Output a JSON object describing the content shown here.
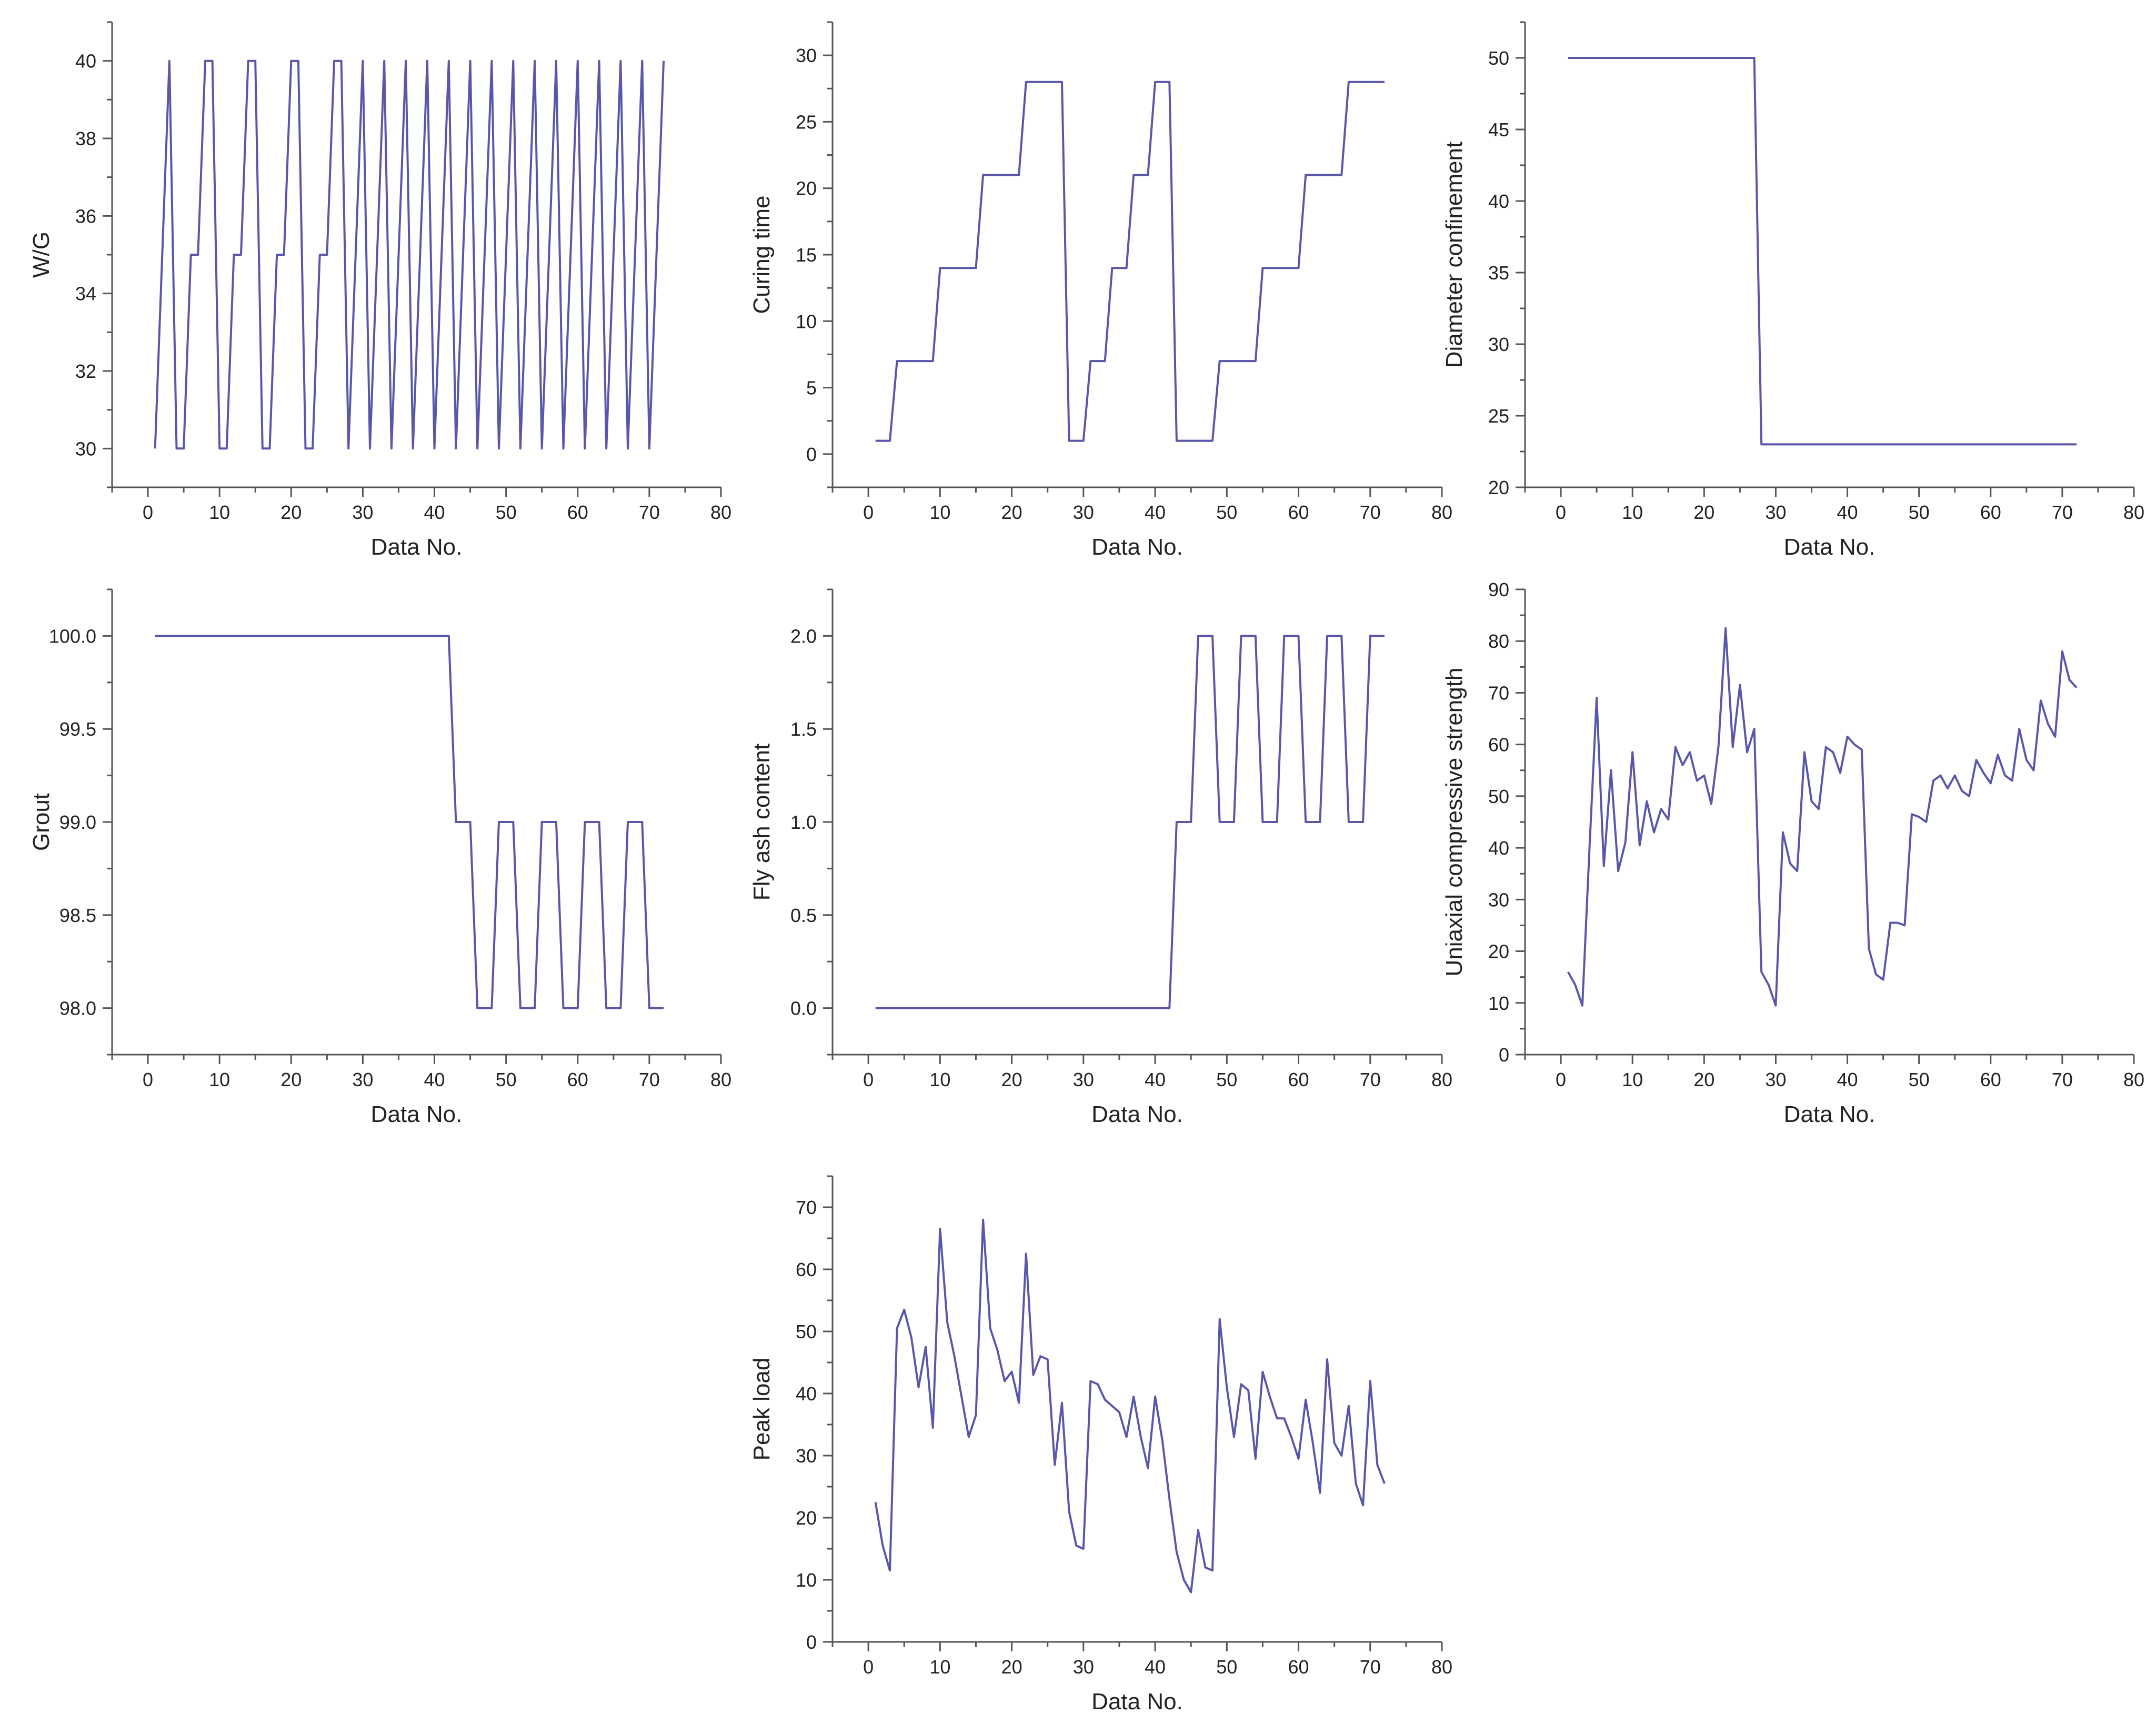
{
  "style": {
    "line_color": "#5a56aa",
    "axis_color": "#555555",
    "text_color": "#222222"
  },
  "chart_data": [
    {
      "type": "line",
      "title": "",
      "xlabel": "Data No.",
      "ylabel": "W/G",
      "xlim": [
        -5,
        80
      ],
      "ylim": [
        29,
        41
      ],
      "xticks": [
        0,
        10,
        20,
        30,
        40,
        50,
        60,
        70,
        80
      ],
      "yticks": [
        30,
        32,
        34,
        36,
        38,
        40
      ],
      "ytick_labels": [
        "30",
        "32",
        "34",
        "36",
        "38",
        "40"
      ],
      "grid": false,
      "x": [
        1,
        2,
        3,
        4,
        5,
        6,
        7,
        8,
        9,
        10,
        11,
        12,
        13,
        14,
        15,
        16,
        17,
        18,
        19,
        20,
        21,
        22,
        23,
        24,
        25,
        26,
        27,
        28,
        29,
        30,
        31,
        32,
        33,
        34,
        35,
        36,
        37,
        38,
        39,
        40,
        41,
        42,
        43,
        44,
        45,
        46,
        47,
        48,
        49,
        50,
        51,
        52,
        53,
        54,
        55,
        56,
        57,
        58,
        59,
        60,
        61,
        62,
        63,
        64,
        65,
        66,
        67,
        68,
        69,
        70,
        71,
        72
      ],
      "y": [
        30,
        35,
        40,
        30,
        30,
        35,
        35,
        40,
        40,
        30,
        30,
        35,
        35,
        40,
        40,
        30,
        30,
        35,
        35,
        40,
        40,
        30,
        30,
        35,
        35,
        40,
        40,
        30,
        35,
        40,
        30,
        35,
        40,
        30,
        35,
        40,
        30,
        35,
        40,
        30,
        35,
        40,
        30,
        35,
        40,
        30,
        35,
        40,
        30,
        35,
        40,
        30,
        35,
        40,
        30,
        35,
        40,
        30,
        35,
        40,
        30,
        35,
        40,
        30,
        35,
        40,
        30,
        35,
        40,
        30,
        35,
        40
      ]
    },
    {
      "type": "line",
      "title": "",
      "xlabel": "Data No.",
      "ylabel": "Curing time",
      "xlim": [
        -5,
        80
      ],
      "ylim": [
        -2.5,
        32.5
      ],
      "xticks": [
        0,
        10,
        20,
        30,
        40,
        50,
        60,
        70,
        80
      ],
      "yticks": [
        0,
        5,
        10,
        15,
        20,
        25,
        30
      ],
      "ytick_labels": [
        "0",
        "5",
        "10",
        "15",
        "20",
        "25",
        "30"
      ],
      "grid": false,
      "x": [
        1,
        2,
        3,
        4,
        5,
        6,
        7,
        8,
        9,
        10,
        11,
        12,
        13,
        14,
        15,
        16,
        17,
        18,
        19,
        20,
        21,
        22,
        23,
        24,
        25,
        26,
        27,
        28,
        29,
        30,
        31,
        32,
        33,
        34,
        35,
        36,
        37,
        38,
        39,
        40,
        41,
        42,
        43,
        44,
        45,
        46,
        47,
        48,
        49,
        50,
        51,
        52,
        53,
        54,
        55,
        56,
        57,
        58,
        59,
        60,
        61,
        62,
        63,
        64,
        65,
        66,
        67,
        68,
        69,
        70,
        71,
        72
      ],
      "y": [
        1,
        1,
        1,
        7,
        7,
        7,
        7,
        7,
        7,
        14,
        14,
        14,
        14,
        14,
        14,
        21,
        21,
        21,
        21,
        21,
        21,
        28,
        28,
        28,
        28,
        28,
        28,
        1,
        1,
        1,
        7,
        7,
        7,
        14,
        14,
        14,
        21,
        21,
        21,
        28,
        28,
        28,
        1,
        1,
        1,
        1,
        1,
        1,
        7,
        7,
        7,
        7,
        7,
        7,
        14,
        14,
        14,
        14,
        14,
        14,
        21,
        21,
        21,
        21,
        21,
        21,
        28,
        28,
        28,
        28,
        28,
        28
      ]
    },
    {
      "type": "line",
      "title": "",
      "xlabel": "Data No.",
      "ylabel": "Diameter confinement",
      "xlim": [
        -5,
        80
      ],
      "ylim": [
        20,
        52.5
      ],
      "xticks": [
        0,
        10,
        20,
        30,
        40,
        50,
        60,
        70,
        80
      ],
      "yticks": [
        20,
        25,
        30,
        35,
        40,
        45,
        50
      ],
      "ytick_labels": [
        "20",
        "25",
        "30",
        "35",
        "40",
        "45",
        "50"
      ],
      "grid": false,
      "x": [
        1,
        27,
        28,
        72
      ],
      "y": [
        50,
        50,
        23,
        23
      ]
    },
    {
      "type": "line",
      "title": "",
      "xlabel": "Data No.",
      "ylabel": "Grout",
      "xlim": [
        -5,
        80
      ],
      "ylim": [
        97.75,
        100.25
      ],
      "xticks": [
        0,
        10,
        20,
        30,
        40,
        50,
        60,
        70,
        80
      ],
      "yticks": [
        98.0,
        98.5,
        99.0,
        99.5,
        100.0
      ],
      "ytick_labels": [
        "98.0",
        "98.5",
        "99.0",
        "99.5",
        "100.0"
      ],
      "grid": false,
      "x": [
        1,
        42,
        43,
        44,
        45,
        46,
        47,
        48,
        49,
        50,
        51,
        52,
        53,
        54,
        55,
        56,
        57,
        58,
        59,
        60,
        61,
        62,
        63,
        64,
        65,
        66,
        67,
        68,
        69,
        70,
        71,
        72
      ],
      "y": [
        100,
        100,
        99,
        99,
        99,
        98,
        98,
        98,
        99,
        99,
        99,
        98,
        98,
        98,
        99,
        99,
        99,
        98,
        98,
        98,
        99,
        99,
        99,
        98,
        98,
        98,
        99,
        99,
        99,
        98,
        98,
        98
      ]
    },
    {
      "type": "line",
      "title": "",
      "xlabel": "Data No.",
      "ylabel": "Fly ash content",
      "xlim": [
        -5,
        80
      ],
      "ylim": [
        -0.25,
        2.25
      ],
      "xticks": [
        0,
        10,
        20,
        30,
        40,
        50,
        60,
        70,
        80
      ],
      "yticks": [
        0.0,
        0.5,
        1.0,
        1.5,
        2.0
      ],
      "ytick_labels": [
        "0.0",
        "0.5",
        "1.0",
        "1.5",
        "2.0"
      ],
      "grid": false,
      "x": [
        1,
        42,
        43,
        44,
        45,
        46,
        47,
        48,
        49,
        50,
        51,
        52,
        53,
        54,
        55,
        56,
        57,
        58,
        59,
        60,
        61,
        62,
        63,
        64,
        65,
        66,
        67,
        68,
        69,
        70,
        71,
        72
      ],
      "y": [
        0,
        0,
        1,
        1,
        1,
        2,
        2,
        2,
        1,
        1,
        1,
        2,
        2,
        2,
        1,
        1,
        1,
        2,
        2,
        2,
        1,
        1,
        1,
        2,
        2,
        2,
        1,
        1,
        1,
        2,
        2,
        2
      ]
    },
    {
      "type": "line",
      "title": "",
      "xlabel": "Data No.",
      "ylabel": "Uniaxial compressive strength",
      "xlim": [
        -5,
        80
      ],
      "ylim": [
        0,
        90
      ],
      "xticks": [
        0,
        10,
        20,
        30,
        40,
        50,
        60,
        70,
        80
      ],
      "yticks": [
        0,
        10,
        20,
        30,
        40,
        50,
        60,
        70,
        80,
        90
      ],
      "ytick_labels": [
        "0",
        "10",
        "20",
        "30",
        "40",
        "50",
        "60",
        "70",
        "80",
        "90"
      ],
      "grid": false,
      "x": [
        1,
        2,
        3,
        4,
        5,
        6,
        7,
        8,
        9,
        10,
        11,
        12,
        13,
        14,
        15,
        16,
        17,
        18,
        19,
        20,
        21,
        22,
        23,
        24,
        25,
        26,
        27,
        28,
        29,
        30,
        31,
        32,
        33,
        34,
        35,
        36,
        37,
        38,
        39,
        40,
        41,
        42,
        43,
        44,
        45,
        46,
        47,
        48,
        49,
        50,
        51,
        52,
        53,
        54,
        55,
        56,
        57,
        58,
        59,
        60,
        61,
        62,
        63,
        64,
        65,
        66,
        67,
        68,
        69,
        70,
        71,
        72
      ],
      "y": [
        16,
        13.5,
        9.5,
        40,
        69,
        36.5,
        55,
        35.5,
        41,
        58.5,
        40.5,
        49,
        43,
        47.5,
        45.5,
        59.5,
        56,
        58.5,
        53,
        54,
        48.5,
        59.5,
        82.5,
        59.5,
        71.5,
        58.5,
        63,
        16,
        13.5,
        9.5,
        43,
        37,
        35.5,
        58.5,
        49,
        47.5,
        59.5,
        58.5,
        54.5,
        61.5,
        60,
        59,
        20.5,
        15.5,
        14.5,
        25.5,
        25.5,
        25,
        46.5,
        46,
        45,
        53,
        54,
        51.5,
        54,
        51,
        50,
        57,
        54.5,
        52.5,
        58,
        54,
        53,
        63,
        57,
        55,
        68.5,
        64,
        61.5,
        78,
        72.5,
        71
      ]
    },
    {
      "type": "line",
      "title": "",
      "xlabel": "Data No.",
      "ylabel": "Peak load",
      "xlim": [
        -5,
        80
      ],
      "ylim": [
        0,
        75
      ],
      "xticks": [
        0,
        10,
        20,
        30,
        40,
        50,
        60,
        70,
        80
      ],
      "yticks": [
        0,
        10,
        20,
        30,
        40,
        50,
        60,
        70
      ],
      "ytick_labels": [
        "0",
        "10",
        "20",
        "30",
        "40",
        "50",
        "60",
        "70"
      ],
      "grid": false,
      "x": [
        1,
        2,
        3,
        4,
        5,
        6,
        7,
        8,
        9,
        10,
        11,
        12,
        13,
        14,
        15,
        16,
        17,
        18,
        19,
        20,
        21,
        22,
        23,
        24,
        25,
        26,
        27,
        28,
        29,
        30,
        31,
        32,
        33,
        34,
        35,
        36,
        37,
        38,
        39,
        40,
        41,
        42,
        43,
        44,
        45,
        46,
        47,
        48,
        49,
        50,
        51,
        52,
        53,
        54,
        55,
        56,
        57,
        58,
        59,
        60,
        61,
        62,
        63,
        64,
        65,
        66,
        67,
        68,
        69,
        70,
        71,
        72
      ],
      "y": [
        22.5,
        15.5,
        11.5,
        50.5,
        53.5,
        49,
        41,
        47.5,
        34.5,
        66.5,
        51.5,
        46,
        39.5,
        33,
        36.5,
        68,
        50.5,
        47,
        42,
        43.5,
        38.5,
        62.5,
        43,
        46,
        45.5,
        28.5,
        38.5,
        21,
        15.5,
        15,
        42,
        41.5,
        39,
        38,
        37,
        33,
        39.5,
        33,
        28,
        39.5,
        32.5,
        23,
        14.5,
        10,
        8,
        18,
        12,
        11.5,
        52,
        41,
        33,
        41.5,
        40.5,
        29.5,
        43.5,
        39.5,
        36,
        36,
        33,
        29.5,
        39,
        32,
        24,
        45.5,
        32,
        30,
        38,
        25.5,
        22,
        42,
        28.5,
        25.5
      ]
    }
  ]
}
